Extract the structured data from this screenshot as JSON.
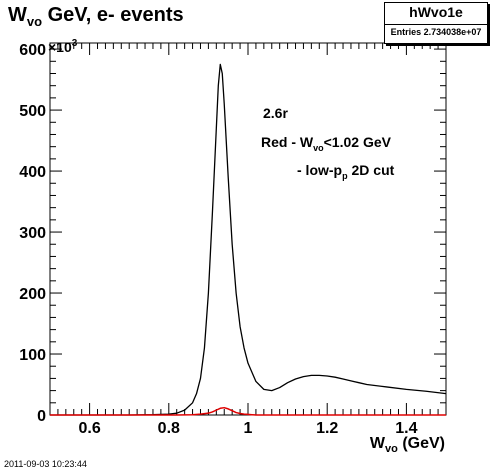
{
  "title": {
    "base": "W",
    "sub": "vo",
    "rest": " GeV, e- events"
  },
  "statbox": {
    "name": "hWvo1e",
    "entries": "Entries 2.734038e+07"
  },
  "timestamp": "2011-09-03 10:23:44",
  "annotations": {
    "line1": "2.6r",
    "line2_pre": "Red - W",
    "line2_sub": "vo",
    "line2_post": "<1.02 GeV",
    "line3_pre": "- low-p",
    "line3_sub": "p",
    "line3_post": " 2D cut"
  },
  "colors": {
    "main_series": "#000000",
    "cut_series": "#e00000",
    "frame": "#000000"
  },
  "chart_data": {
    "type": "line",
    "title": "Wvo GeV, e- events",
    "xlabel": "Wvo (GeV)",
    "ylabel": "",
    "y_multiplier_label": "×10³",
    "xlim": [
      0.5,
      1.5
    ],
    "ylim": [
      0,
      610
    ],
    "x_ticks": [
      0.6,
      0.8,
      1,
      1.2,
      1.4
    ],
    "x_tick_labels": [
      "0.6",
      "0.8",
      "1",
      "1.2",
      "1.4"
    ],
    "y_ticks": [
      0,
      100,
      200,
      300,
      400,
      500,
      600
    ],
    "y_tick_labels": [
      "0",
      "100",
      "200",
      "300",
      "400",
      "500",
      "600"
    ],
    "grid": false,
    "series": [
      {
        "color": "#000000",
        "x": [
          0.5,
          0.7,
          0.76,
          0.8,
          0.82,
          0.84,
          0.86,
          0.87,
          0.88,
          0.89,
          0.9,
          0.91,
          0.92,
          0.925,
          0.93,
          0.935,
          0.94,
          0.945,
          0.95,
          0.96,
          0.97,
          0.98,
          0.99,
          1.0,
          1.02,
          1.04,
          1.06,
          1.08,
          1.1,
          1.12,
          1.14,
          1.16,
          1.18,
          1.2,
          1.22,
          1.24,
          1.26,
          1.28,
          1.3,
          1.35,
          1.4,
          1.45,
          1.5
        ],
        "y": [
          0,
          0,
          0.5,
          1.5,
          3,
          8,
          20,
          35,
          60,
          110,
          200,
          330,
          470,
          540,
          575,
          560,
          510,
          450,
          390,
          280,
          200,
          145,
          110,
          85,
          55,
          42,
          40,
          45,
          53,
          59,
          63,
          65,
          65,
          64,
          62,
          59,
          56,
          53,
          50,
          46,
          42,
          39,
          35
        ]
      },
      {
        "color": "#e00000",
        "x": [
          0.5,
          0.82,
          0.86,
          0.88,
          0.9,
          0.91,
          0.92,
          0.93,
          0.94,
          0.95,
          0.96,
          0.97,
          0.98,
          0.99,
          1.0,
          1.01,
          1.02,
          1.5
        ],
        "y": [
          0,
          0,
          0.5,
          1.5,
          3,
          5,
          8,
          11,
          12,
          10,
          7,
          4,
          2.5,
          1.5,
          1,
          0.5,
          0,
          0
        ]
      }
    ]
  }
}
